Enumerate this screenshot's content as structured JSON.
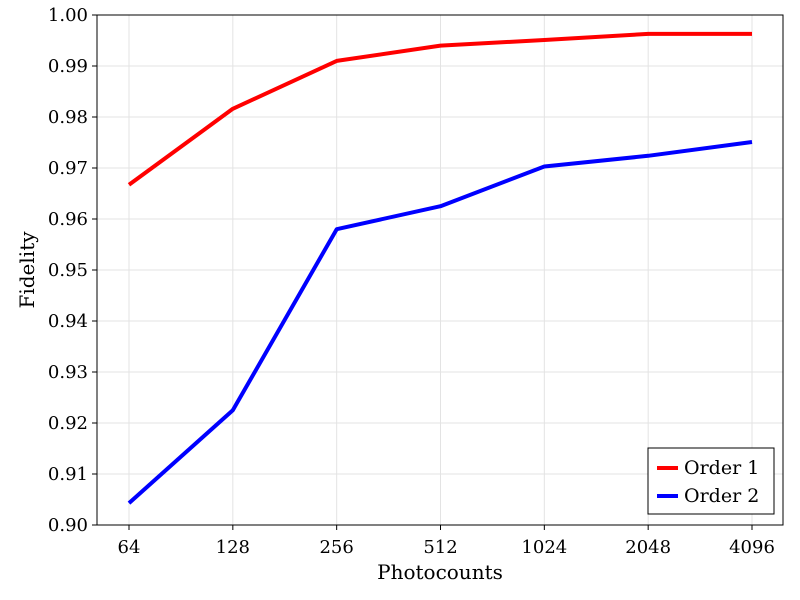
{
  "chart_data": {
    "type": "line",
    "title": "",
    "xlabel": "Photocounts",
    "ylabel": "Fidelity",
    "x_scale": "log2",
    "categories": [
      "64",
      "128",
      "256",
      "512",
      "1024",
      "2048",
      "4096"
    ],
    "x": [
      64,
      128,
      256,
      512,
      1024,
      2048,
      4096
    ],
    "ylim": [
      0.9,
      1.0
    ],
    "yticks": [
      "0.90",
      "0.91",
      "0.92",
      "0.93",
      "0.94",
      "0.95",
      "0.96",
      "0.97",
      "0.98",
      "0.99",
      "1.00"
    ],
    "grid": true,
    "legend_position": "bottom-right",
    "series": [
      {
        "name": "Order 1",
        "color": "#ff0000",
        "values": [
          0.9667,
          0.9816,
          0.991,
          0.994,
          0.9951,
          0.9963,
          0.9963
        ]
      },
      {
        "name": "Order 2",
        "color": "#0000ff",
        "values": [
          0.9043,
          0.9225,
          0.958,
          0.9625,
          0.9703,
          0.9724,
          0.9751
        ]
      }
    ]
  }
}
